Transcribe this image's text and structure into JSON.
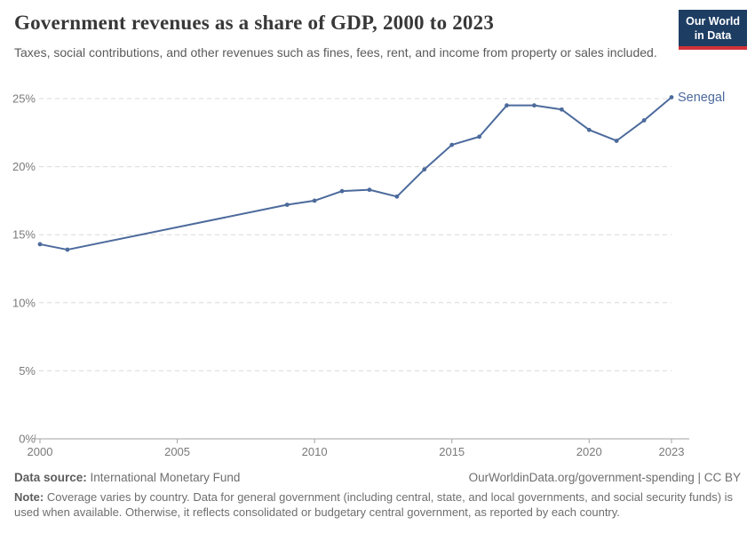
{
  "header": {
    "title": "Government revenues as a share of GDP, 2000 to 2023",
    "subtitle": "Taxes, social contributions, and other revenues such as fines, fees, rent, and income from property or sales included.",
    "logo": {
      "line1": "Our World",
      "line2": "in Data"
    }
  },
  "chart_data": {
    "type": "line",
    "title": "Government revenues as a share of GDP, 2000 to 2023",
    "xlabel": "",
    "ylabel": "",
    "xlim": [
      2000,
      2023
    ],
    "ylim": [
      0,
      25
    ],
    "x_ticks": [
      2000,
      2005,
      2010,
      2015,
      2020,
      2023
    ],
    "y_ticks": [
      0,
      5,
      10,
      15,
      20,
      25
    ],
    "y_tick_suffix": "%",
    "grid": "horizontal-dashed",
    "legend_position": "end-of-line-label",
    "series": [
      {
        "name": "Senegal",
        "color": "#4c6a9c",
        "points": [
          [
            2000,
            14.3
          ],
          [
            2001,
            13.9
          ],
          [
            2009,
            17.2
          ],
          [
            2010,
            17.5
          ],
          [
            2011,
            18.2
          ],
          [
            2012,
            18.3
          ],
          [
            2013,
            17.8
          ],
          [
            2014,
            19.8
          ],
          [
            2015,
            21.6
          ],
          [
            2016,
            22.2
          ],
          [
            2017,
            24.5
          ],
          [
            2018,
            24.5
          ],
          [
            2019,
            24.2
          ],
          [
            2020,
            22.7
          ],
          [
            2021,
            21.9
          ],
          [
            2022,
            23.4
          ],
          [
            2023,
            25.1
          ]
        ]
      }
    ]
  },
  "footer": {
    "source_label": "Data source:",
    "source_value": "International Monetary Fund",
    "rights": "OurWorldinData.org/government-spending | CC BY",
    "note_label": "Note:",
    "note_text": "Coverage varies by country. Data for general government (including central, state, and local governments, and social security funds) is used when available. Otherwise, it reflects consolidated or budgetary central government, as reported by each country."
  },
  "colors": {
    "line": "#4c6a9c",
    "logo_bg": "#1d3d63",
    "logo_stripe": "#d13239",
    "grid": "#d9d9d9",
    "axis": "#a3a3a3",
    "tick_text": "#7a7a7a"
  }
}
